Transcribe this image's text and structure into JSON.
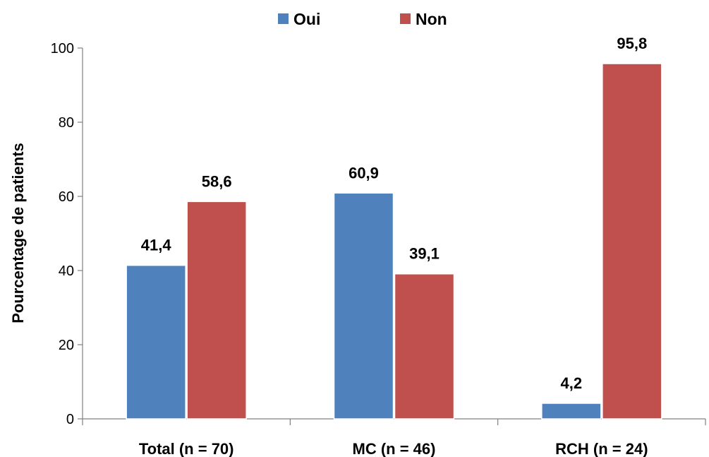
{
  "chart_data": {
    "type": "bar",
    "title": "",
    "xlabel": "",
    "ylabel": "Pourcentage de patients",
    "categories": [
      "Total (n = 70)",
      "MC (n = 46)",
      "RCH (n = 24)"
    ],
    "series": [
      {
        "name": "Oui",
        "color": "#4F81BD",
        "values": [
          41.4,
          60.9,
          4.2
        ],
        "labels": [
          "41,4",
          "60,9",
          "4,2"
        ]
      },
      {
        "name": "Non",
        "color": "#C0504D",
        "values": [
          58.6,
          39.1,
          95.8
        ],
        "labels": [
          "58,6",
          "39,1",
          "95,8"
        ]
      }
    ],
    "ylim": [
      0,
      100
    ],
    "yticks": [
      "0",
      "20",
      "40",
      "60",
      "80",
      "100"
    ],
    "grid": false,
    "legend_position": "top-center"
  }
}
